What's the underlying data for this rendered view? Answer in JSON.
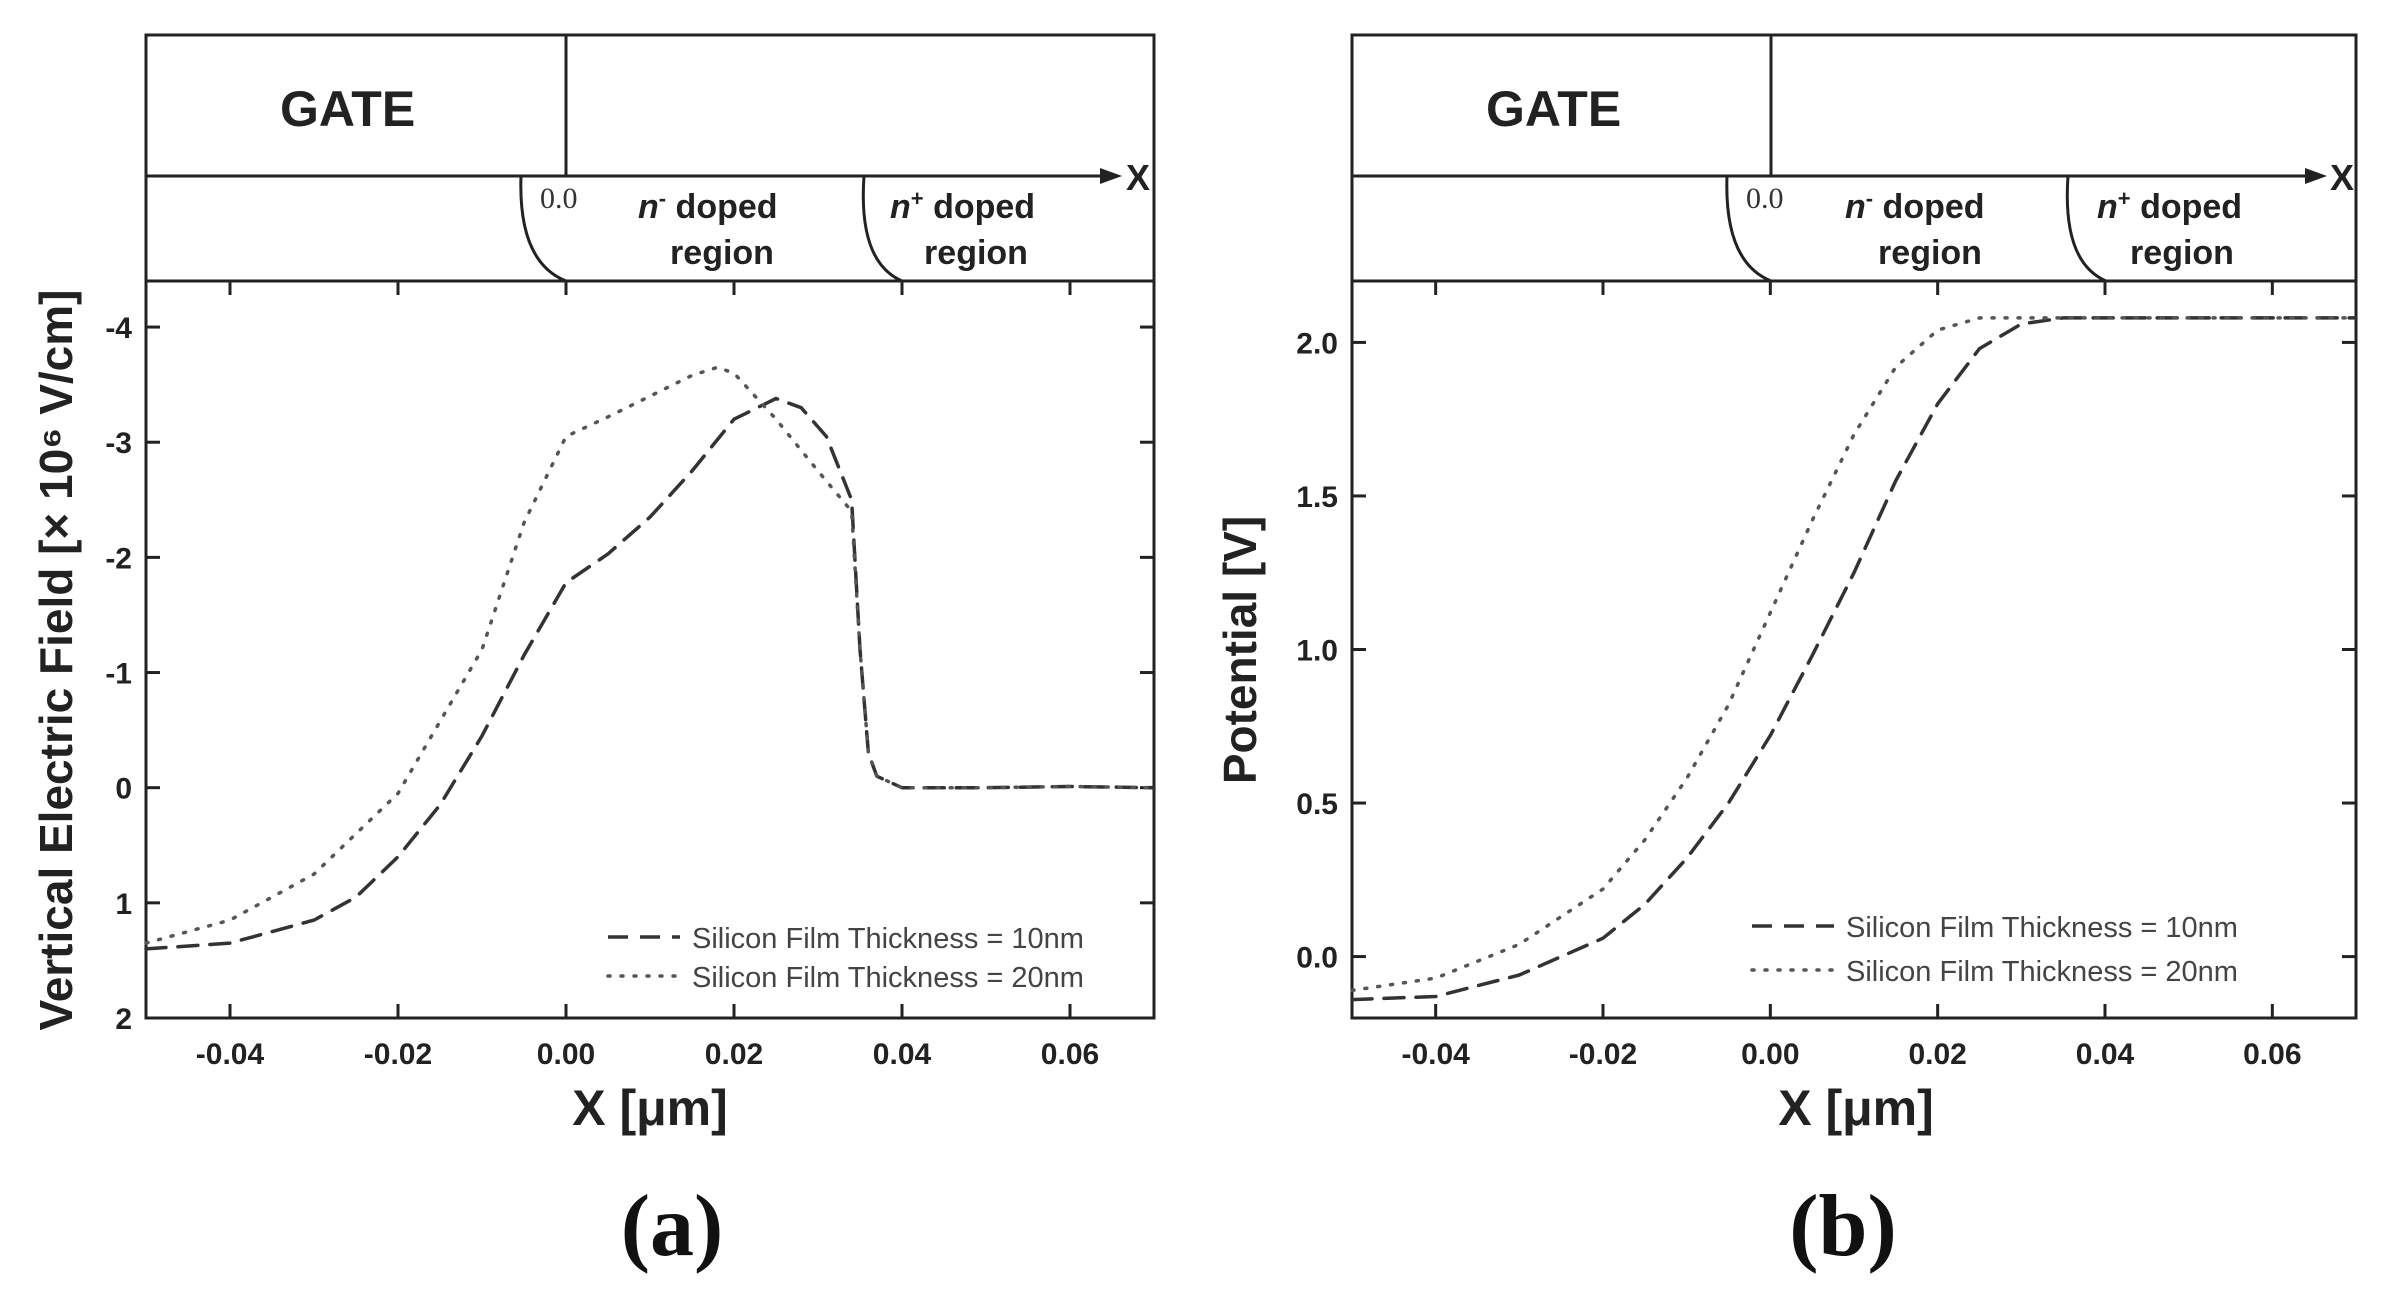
{
  "chart_data": [
    {
      "id": "a",
      "type": "line",
      "panel_label": "(a)",
      "xlabel": "X [μm]",
      "ylabel": "Vertical Electric Field [× 10⁶ V/cm]",
      "xlim": [
        -0.05,
        0.07
      ],
      "ylim": [
        2,
        -4.4
      ],
      "y_inverted": true,
      "xticks": [
        -0.04,
        -0.02,
        0.0,
        0.02,
        0.04,
        0.06
      ],
      "xtick_labels": [
        "-0.04",
        "-0.02",
        "0.00",
        "0.02",
        "0.04",
        "0.06"
      ],
      "yticks": [
        -4,
        -3,
        -2,
        -1,
        0,
        1,
        2
      ],
      "ytick_labels": [
        "-4",
        "-3",
        "-2",
        "-1",
        "0",
        "1",
        "2"
      ],
      "device": {
        "gate_label": "GATE",
        "axis_label": "X",
        "origin_label": "0.0",
        "region1_prefix": "n",
        "region1_sup": "-",
        "region1_line1": " doped",
        "region1_line2": "region",
        "region2_prefix": "n",
        "region2_sup": "+",
        "region2_line1": " doped",
        "region2_line2": "region"
      },
      "legend_position": "bottom-right",
      "series": [
        {
          "name": "Silicon Film Thickness = 10nm",
          "style": "dashed",
          "x": [
            -0.05,
            -0.04,
            -0.03,
            -0.025,
            -0.02,
            -0.015,
            -0.01,
            -0.005,
            0.0,
            0.005,
            0.01,
            0.015,
            0.02,
            0.025,
            0.028,
            0.031,
            0.034,
            0.035,
            0.036,
            0.037,
            0.04,
            0.05,
            0.06,
            0.07
          ],
          "y": [
            1.4,
            1.35,
            1.15,
            0.95,
            0.6,
            0.15,
            -0.45,
            -1.15,
            -1.78,
            -2.03,
            -2.35,
            -2.75,
            -3.2,
            -3.38,
            -3.3,
            -3.05,
            -2.5,
            -1.2,
            -0.3,
            -0.1,
            0.0,
            0.0,
            -0.01,
            0.0
          ]
        },
        {
          "name": "Silicon Film Thickness = 20nm",
          "style": "dotted",
          "x": [
            -0.05,
            -0.04,
            -0.03,
            -0.02,
            -0.01,
            -0.005,
            0.0,
            0.005,
            0.01,
            0.015,
            0.018,
            0.02,
            0.025,
            0.03,
            0.034,
            0.035,
            0.036,
            0.037,
            0.04,
            0.05,
            0.06,
            0.07
          ],
          "y": [
            1.35,
            1.15,
            0.75,
            0.05,
            -1.2,
            -2.3,
            -3.05,
            -3.22,
            -3.4,
            -3.58,
            -3.65,
            -3.6,
            -3.2,
            -2.75,
            -2.4,
            -1.2,
            -0.3,
            -0.1,
            0.0,
            0.0,
            -0.01,
            0.0
          ]
        }
      ]
    },
    {
      "id": "b",
      "type": "line",
      "panel_label": "(b)",
      "xlabel": "X [μm]",
      "ylabel": "Potential [V]",
      "xlim": [
        -0.05,
        0.07
      ],
      "ylim": [
        -0.2,
        2.2
      ],
      "y_inverted": false,
      "xticks": [
        -0.04,
        -0.02,
        0.0,
        0.02,
        0.04,
        0.06
      ],
      "xtick_labels": [
        "-0.04",
        "-0.02",
        "0.00",
        "0.02",
        "0.04",
        "0.06"
      ],
      "yticks": [
        0.0,
        0.5,
        1.0,
        1.5,
        2.0
      ],
      "ytick_labels": [
        "0.0",
        "0.5",
        "1.0",
        "1.5",
        "2.0"
      ],
      "device": {
        "gate_label": "GATE",
        "axis_label": "X",
        "origin_label": "0.0",
        "region1_prefix": "n",
        "region1_sup": "-",
        "region1_line1": " doped",
        "region1_line2": "region",
        "region2_prefix": "n",
        "region2_sup": "+",
        "region2_line1": " doped",
        "region2_line2": "region"
      },
      "legend_position": "bottom-right",
      "series": [
        {
          "name": "Silicon Film Thickness = 10nm",
          "style": "dashed",
          "x": [
            -0.05,
            -0.04,
            -0.03,
            -0.02,
            -0.015,
            -0.01,
            -0.005,
            0.0,
            0.005,
            0.01,
            0.015,
            0.02,
            0.025,
            0.03,
            0.035,
            0.04,
            0.05,
            0.06,
            0.07
          ],
          "y": [
            -0.14,
            -0.13,
            -0.06,
            0.06,
            0.17,
            0.32,
            0.5,
            0.72,
            0.98,
            1.25,
            1.55,
            1.8,
            1.98,
            2.06,
            2.08,
            2.08,
            2.08,
            2.08,
            2.08
          ]
        },
        {
          "name": "Silicon Film Thickness = 20nm",
          "style": "dotted",
          "x": [
            -0.05,
            -0.04,
            -0.03,
            -0.02,
            -0.015,
            -0.01,
            -0.005,
            0.0,
            0.005,
            0.01,
            0.015,
            0.02,
            0.025,
            0.03,
            0.035,
            0.04,
            0.05,
            0.06,
            0.07
          ],
          "y": [
            -0.11,
            -0.07,
            0.04,
            0.22,
            0.38,
            0.58,
            0.82,
            1.12,
            1.42,
            1.7,
            1.92,
            2.04,
            2.08,
            2.08,
            2.08,
            2.08,
            2.08,
            2.08,
            2.08
          ]
        }
      ]
    }
  ]
}
